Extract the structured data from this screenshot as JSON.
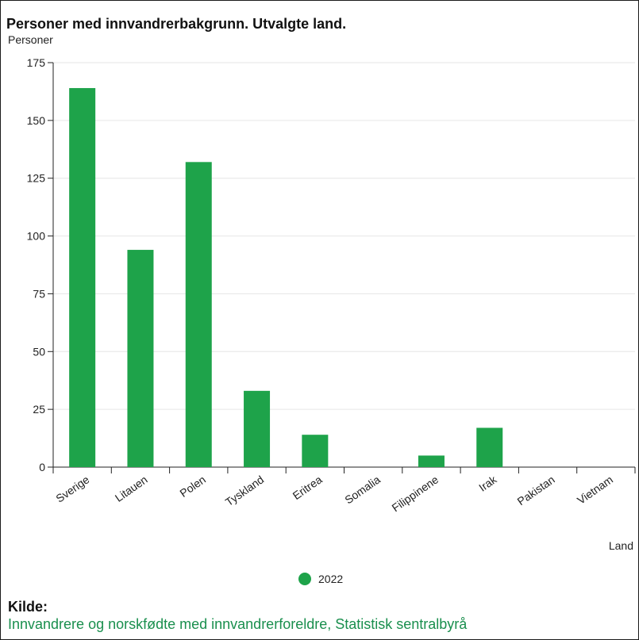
{
  "chart_data": {
    "type": "bar",
    "title": "Personer med innvandrerbakgrunn. Utvalgte land.",
    "ylabel": "Personer",
    "xlabel": "Land",
    "categories": [
      "Sverige",
      "Litauen",
      "Polen",
      "Tyskland",
      "Eritrea",
      "Somalia",
      "Filippinene",
      "Irak",
      "Pakistan",
      "Vietnam"
    ],
    "series": [
      {
        "name": "2022",
        "values": [
          164,
          94,
          132,
          33,
          14,
          0,
          5,
          17,
          0,
          0
        ]
      }
    ],
    "ylim": [
      0,
      175
    ],
    "yticks": [
      0,
      25,
      50,
      75,
      100,
      125,
      150,
      175
    ],
    "grid": true,
    "legend_position": "bottom-center",
    "bar_color": "#1ea34a"
  },
  "source": {
    "heading": "Kilde:",
    "text": "Innvandrere og norskfødte med innvandrerforeldre, Statistisk sentralbyrå",
    "text_color": "#1a8f4e"
  }
}
